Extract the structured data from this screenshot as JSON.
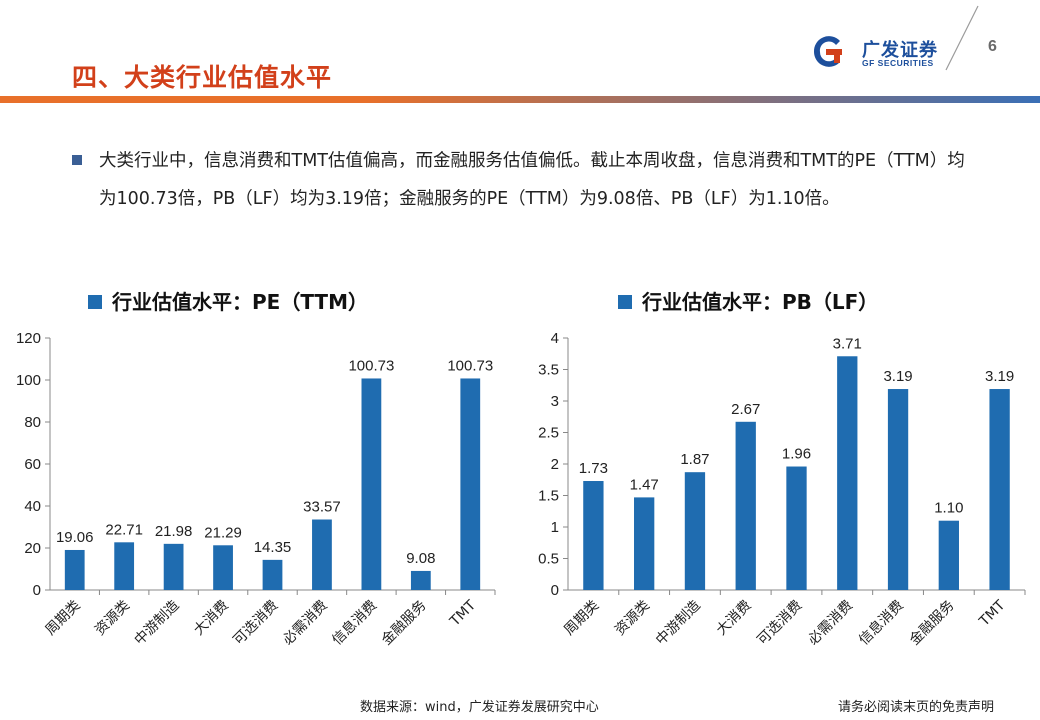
{
  "header": {
    "title": "四、大类行业估值水平",
    "page_number": "6",
    "logo_cn": "广发证券",
    "logo_en": "GF SECURITIES"
  },
  "summary": {
    "text": "大类行业中，信息消费和TMT估值偏高，而金融服务估值偏低。截止本周收盘，信息消费和TMT的PE（TTM）均为100.73倍，PB（LF）均为3.19倍；金融服务的PE（TTM）为9.08倍、PB（LF）为1.10倍。"
  },
  "colors": {
    "bar": "#1f6cb0",
    "title": "#d2401a"
  },
  "chart_data": [
    {
      "type": "bar",
      "legend": "行业估值水平：PE（TTM）",
      "categories": [
        "周期类",
        "资源类",
        "中游制造",
        "大消费",
        "可选消费",
        "必需消费",
        "信息消费",
        "金融服务",
        "TMT"
      ],
      "values": [
        19.06,
        22.71,
        21.98,
        21.29,
        14.35,
        33.57,
        100.73,
        9.08,
        100.73
      ],
      "data_labels": [
        "19.06",
        "22.71",
        "21.98",
        "21.29",
        "14.35",
        "33.57",
        "100.73",
        "9.08",
        "100.73"
      ],
      "yticks": [
        "0",
        "20",
        "40",
        "60",
        "80",
        "100",
        "120"
      ],
      "ylim": [
        0,
        120
      ]
    },
    {
      "type": "bar",
      "legend": "行业估值水平：PB（LF）",
      "categories": [
        "周期类",
        "资源类",
        "中游制造",
        "大消费",
        "可选消费",
        "必需消费",
        "信息消费",
        "金融服务",
        "TMT"
      ],
      "values": [
        1.73,
        1.47,
        1.87,
        2.67,
        1.96,
        3.71,
        3.19,
        1.1,
        3.19
      ],
      "data_labels": [
        "1.73",
        "1.47",
        "1.87",
        "2.67",
        "1.96",
        "3.71",
        "3.19",
        "1.10",
        "3.19"
      ],
      "yticks": [
        "0",
        "0.5",
        "1",
        "1.5",
        "2",
        "2.5",
        "3",
        "3.5",
        "4"
      ],
      "ylim": [
        0,
        4
      ]
    }
  ],
  "footer": {
    "source": "数据来源：wind，广发证券发展研究中心",
    "disclaimer": "请务必阅读末页的免责声明"
  }
}
